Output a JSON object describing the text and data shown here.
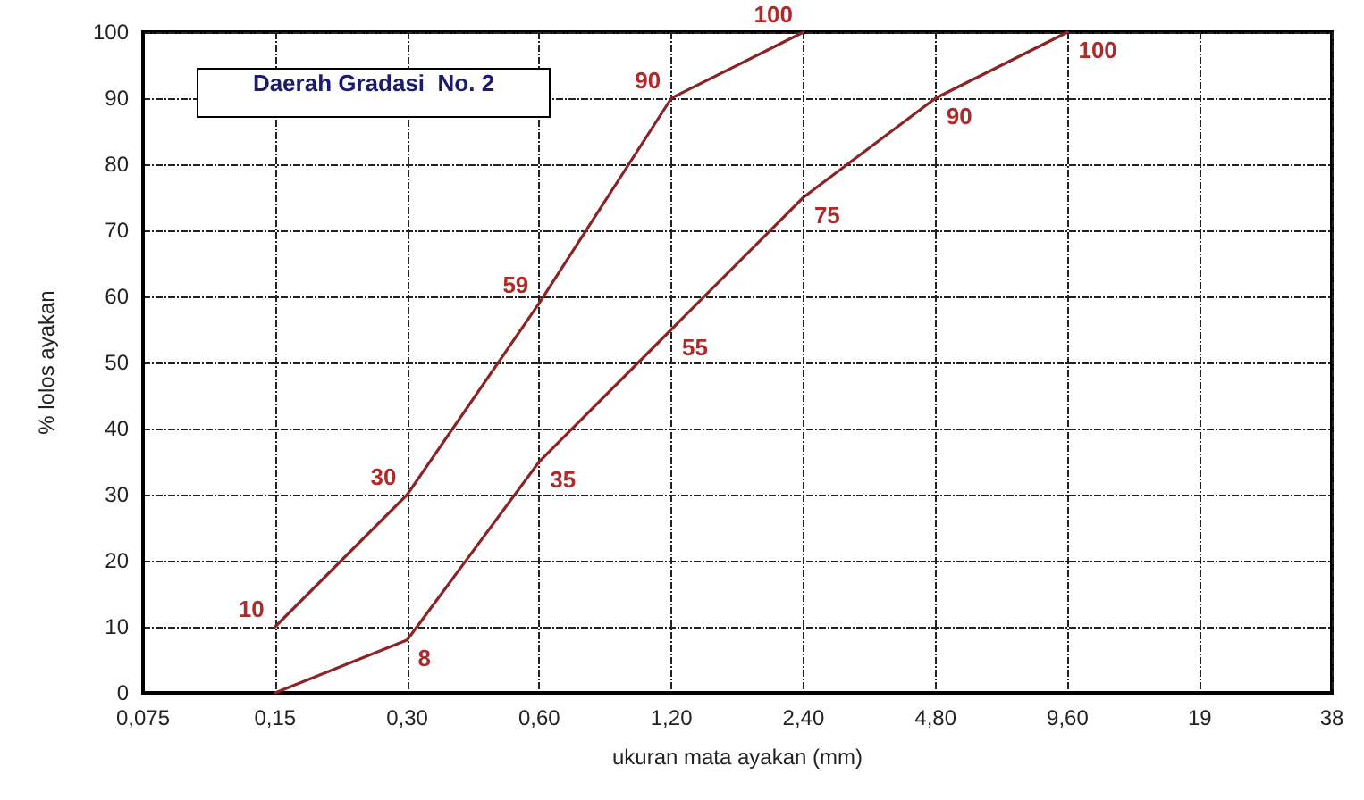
{
  "chart_data": {
    "type": "line",
    "xlabel": "ukuran mata ayakan (mm)",
    "ylabel": "% lolos ayakan",
    "annotations": [
      "Daerah Gradasi  No. 2"
    ],
    "categories": [
      "0,075",
      "0,15",
      "0,30",
      "0,60",
      "1,20",
      "2,40",
      "4,80",
      "9,60",
      "19",
      "38"
    ],
    "series": [
      {
        "color": "#8b2525",
        "values": [
          null,
          10,
          30,
          59,
          90,
          100,
          null,
          null,
          null,
          null
        ],
        "value_labels": [
          null,
          "10",
          "30",
          "59",
          "90",
          "100",
          null,
          null,
          null,
          null
        ]
      },
      {
        "color": "#8b2525",
        "values": [
          null,
          0,
          8,
          35,
          55,
          75,
          90,
          100,
          null,
          null
        ],
        "value_labels": [
          null,
          null,
          "8",
          "35",
          "55",
          "75",
          "90",
          "100",
          null,
          null
        ]
      }
    ],
    "ylim": [
      0,
      100
    ],
    "yticks": [
      0,
      10,
      20,
      30,
      40,
      50,
      60,
      70,
      80,
      90,
      100
    ],
    "grid": true,
    "marker": "none",
    "line_style": "solid"
  }
}
